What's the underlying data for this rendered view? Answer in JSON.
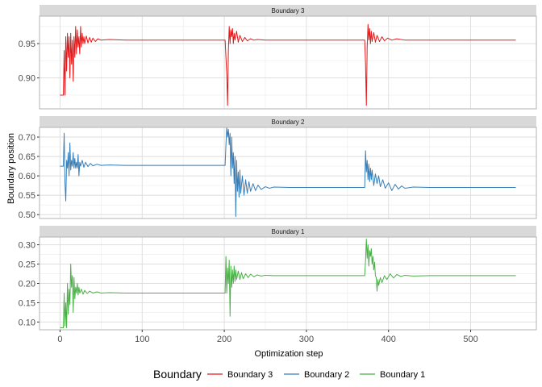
{
  "chart_data": {
    "type": "line",
    "xlabel": "Optimization step",
    "ylabel": "Boundary position",
    "xlim": [
      -25,
      580
    ],
    "x_ticks": [
      0,
      100,
      200,
      300,
      400,
      500
    ],
    "x_tick_labels": [
      "0",
      "100",
      "200",
      "300",
      "400",
      "500"
    ],
    "legend": {
      "title": "Boundary",
      "placement": "bottom",
      "entries": [
        {
          "label": "Boundary 3",
          "color": "#e41a1c"
        },
        {
          "label": "Boundary 2",
          "color": "#377eb8"
        },
        {
          "label": "Boundary 1",
          "color": "#4daf4a"
        }
      ]
    },
    "grid": true,
    "panels": [
      {
        "strip": "Boundary 3",
        "color": "#e41a1c",
        "ylim": [
          0.855,
          0.99
        ],
        "y_ticks": [
          0.9,
          0.95
        ],
        "y_tick_labels": [
          "0.90",
          "0.95"
        ],
        "points": [
          [
            0,
            0.875
          ],
          [
            4,
            0.875
          ],
          [
            5,
            0.94
          ],
          [
            6,
            0.875
          ],
          [
            7,
            0.96
          ],
          [
            8,
            0.91
          ],
          [
            9,
            0.965
          ],
          [
            10,
            0.93
          ],
          [
            11,
            0.96
          ],
          [
            12,
            0.9
          ],
          [
            13,
            0.965
          ],
          [
            14,
            0.92
          ],
          [
            15,
            0.955
          ],
          [
            16,
            0.895
          ],
          [
            17,
            0.96
          ],
          [
            18,
            0.93
          ],
          [
            19,
            0.975
          ],
          [
            20,
            0.935
          ],
          [
            21,
            0.97
          ],
          [
            22,
            0.945
          ],
          [
            23,
            0.96
          ],
          [
            24,
            0.935
          ],
          [
            25,
            0.975
          ],
          [
            26,
            0.945
          ],
          [
            27,
            0.965
          ],
          [
            28,
            0.95
          ],
          [
            29,
            0.96
          ],
          [
            30,
            0.95
          ],
          [
            32,
            0.961
          ],
          [
            34,
            0.951
          ],
          [
            36,
            0.959
          ],
          [
            38,
            0.952
          ],
          [
            40,
            0.958
          ],
          [
            43,
            0.953
          ],
          [
            46,
            0.957
          ],
          [
            50,
            0.955
          ],
          [
            60,
            0.956
          ],
          [
            80,
            0.955
          ],
          [
            100,
            0.955
          ],
          [
            150,
            0.955
          ],
          [
            200,
            0.955
          ],
          [
            201,
            0.955
          ],
          [
            202,
            0.93
          ],
          [
            203,
            0.905
          ],
          [
            204,
            0.86
          ],
          [
            205,
            0.94
          ],
          [
            206,
            0.975
          ],
          [
            207,
            0.95
          ],
          [
            208,
            0.97
          ],
          [
            209,
            0.96
          ],
          [
            210,
            0.972
          ],
          [
            211,
            0.95
          ],
          [
            212,
            0.965
          ],
          [
            213,
            0.955
          ],
          [
            215,
            0.968
          ],
          [
            217,
            0.952
          ],
          [
            219,
            0.962
          ],
          [
            222,
            0.953
          ],
          [
            225,
            0.959
          ],
          [
            228,
            0.954
          ],
          [
            232,
            0.957
          ],
          [
            236,
            0.955
          ],
          [
            240,
            0.956
          ],
          [
            250,
            0.955
          ],
          [
            300,
            0.955
          ],
          [
            370,
            0.955
          ],
          [
            371,
            0.955
          ],
          [
            372,
            0.92
          ],
          [
            373,
            0.86
          ],
          [
            374,
            0.945
          ],
          [
            375,
            0.978
          ],
          [
            376,
            0.955
          ],
          [
            377,
            0.972
          ],
          [
            378,
            0.95
          ],
          [
            379,
            0.968
          ],
          [
            380,
            0.953
          ],
          [
            382,
            0.966
          ],
          [
            384,
            0.952
          ],
          [
            386,
            0.962
          ],
          [
            389,
            0.953
          ],
          [
            392,
            0.96
          ],
          [
            395,
            0.954
          ],
          [
            399,
            0.958
          ],
          [
            404,
            0.955
          ],
          [
            410,
            0.957
          ],
          [
            420,
            0.955
          ],
          [
            450,
            0.955
          ],
          [
            500,
            0.955
          ],
          [
            555,
            0.955
          ]
        ]
      },
      {
        "strip": "Boundary 2",
        "color": "#377eb8",
        "ylim": [
          0.49,
          0.725
        ],
        "y_ticks": [
          0.5,
          0.55,
          0.6,
          0.65,
          0.7
        ],
        "y_tick_labels": [
          "0.50",
          "0.55",
          "0.60",
          "0.65",
          "0.70"
        ],
        "points": [
          [
            0,
            0.625
          ],
          [
            4,
            0.625
          ],
          [
            5,
            0.71
          ],
          [
            6,
            0.58
          ],
          [
            7,
            0.535
          ],
          [
            8,
            0.64
          ],
          [
            9,
            0.62
          ],
          [
            10,
            0.66
          ],
          [
            11,
            0.6
          ],
          [
            12,
            0.685
          ],
          [
            13,
            0.615
          ],
          [
            14,
            0.64
          ],
          [
            15,
            0.625
          ],
          [
            16,
            0.66
          ],
          [
            17,
            0.62
          ],
          [
            18,
            0.645
          ],
          [
            19,
            0.62
          ],
          [
            20,
            0.635
          ],
          [
            21,
            0.62
          ],
          [
            22,
            0.655
          ],
          [
            23,
            0.6
          ],
          [
            24,
            0.635
          ],
          [
            25,
            0.625
          ],
          [
            27,
            0.64
          ],
          [
            29,
            0.622
          ],
          [
            31,
            0.635
          ],
          [
            34,
            0.624
          ],
          [
            37,
            0.632
          ],
          [
            40,
            0.626
          ],
          [
            45,
            0.63
          ],
          [
            50,
            0.627
          ],
          [
            60,
            0.628
          ],
          [
            80,
            0.627
          ],
          [
            100,
            0.627
          ],
          [
            150,
            0.627
          ],
          [
            200,
            0.627
          ],
          [
            201,
            0.627
          ],
          [
            202,
            0.68
          ],
          [
            203,
            0.725
          ],
          [
            204,
            0.7
          ],
          [
            205,
            0.72
          ],
          [
            206,
            0.68
          ],
          [
            207,
            0.71
          ],
          [
            208,
            0.6
          ],
          [
            209,
            0.7
          ],
          [
            210,
            0.62
          ],
          [
            211,
            0.66
          ],
          [
            212,
            0.58
          ],
          [
            213,
            0.65
          ],
          [
            214,
            0.495
          ],
          [
            215,
            0.64
          ],
          [
            216,
            0.56
          ],
          [
            217,
            0.61
          ],
          [
            218,
            0.545
          ],
          [
            219,
            0.615
          ],
          [
            220,
            0.555
          ],
          [
            222,
            0.6
          ],
          [
            224,
            0.55
          ],
          [
            226,
            0.59
          ],
          [
            228,
            0.555
          ],
          [
            230,
            0.585
          ],
          [
            232,
            0.56
          ],
          [
            235,
            0.58
          ],
          [
            238,
            0.562
          ],
          [
            241,
            0.576
          ],
          [
            245,
            0.565
          ],
          [
            250,
            0.572
          ],
          [
            255,
            0.568
          ],
          [
            260,
            0.571
          ],
          [
            280,
            0.57
          ],
          [
            300,
            0.57
          ],
          [
            370,
            0.57
          ],
          [
            371,
            0.57
          ],
          [
            372,
            0.665
          ],
          [
            373,
            0.61
          ],
          [
            374,
            0.64
          ],
          [
            375,
            0.59
          ],
          [
            376,
            0.63
          ],
          [
            377,
            0.585
          ],
          [
            378,
            0.62
          ],
          [
            379,
            0.59
          ],
          [
            380,
            0.615
          ],
          [
            382,
            0.575
          ],
          [
            384,
            0.605
          ],
          [
            386,
            0.58
          ],
          [
            388,
            0.6
          ],
          [
            390,
            0.572
          ],
          [
            393,
            0.59
          ],
          [
            396,
            0.568
          ],
          [
            400,
            0.582
          ],
          [
            404,
            0.562
          ],
          [
            408,
            0.578
          ],
          [
            412,
            0.566
          ],
          [
            416,
            0.574
          ],
          [
            420,
            0.568
          ],
          [
            430,
            0.571
          ],
          [
            450,
            0.57
          ],
          [
            500,
            0.57
          ],
          [
            555,
            0.57
          ]
        ]
      },
      {
        "strip": "Boundary 1",
        "color": "#4daf4a",
        "ylim": [
          0.08,
          0.32
        ],
        "y_ticks": [
          0.1,
          0.15,
          0.2,
          0.25,
          0.3
        ],
        "y_tick_labels": [
          "0.10",
          "0.15",
          "0.20",
          "0.25",
          "0.30"
        ],
        "points": [
          [
            0,
            0.085
          ],
          [
            4,
            0.085
          ],
          [
            5,
            0.175
          ],
          [
            6,
            0.09
          ],
          [
            7,
            0.15
          ],
          [
            8,
            0.085
          ],
          [
            9,
            0.2
          ],
          [
            10,
            0.12
          ],
          [
            11,
            0.185
          ],
          [
            12,
            0.145
          ],
          [
            13,
            0.25
          ],
          [
            14,
            0.19
          ],
          [
            15,
            0.22
          ],
          [
            16,
            0.125
          ],
          [
            17,
            0.215
          ],
          [
            18,
            0.16
          ],
          [
            19,
            0.19
          ],
          [
            20,
            0.175
          ],
          [
            21,
            0.2
          ],
          [
            22,
            0.17
          ],
          [
            23,
            0.19
          ],
          [
            24,
            0.175
          ],
          [
            26,
            0.185
          ],
          [
            28,
            0.172
          ],
          [
            30,
            0.182
          ],
          [
            33,
            0.174
          ],
          [
            36,
            0.18
          ],
          [
            40,
            0.175
          ],
          [
            45,
            0.178
          ],
          [
            50,
            0.175
          ],
          [
            60,
            0.176
          ],
          [
            80,
            0.175
          ],
          [
            100,
            0.175
          ],
          [
            150,
            0.175
          ],
          [
            200,
            0.175
          ],
          [
            201,
            0.175
          ],
          [
            202,
            0.27
          ],
          [
            203,
            0.175
          ],
          [
            204,
            0.24
          ],
          [
            205,
            0.2
          ],
          [
            206,
            0.26
          ],
          [
            207,
            0.115
          ],
          [
            208,
            0.245
          ],
          [
            209,
            0.19
          ],
          [
            210,
            0.235
          ],
          [
            211,
            0.2
          ],
          [
            212,
            0.245
          ],
          [
            213,
            0.205
          ],
          [
            214,
            0.235
          ],
          [
            215,
            0.21
          ],
          [
            217,
            0.232
          ],
          [
            219,
            0.21
          ],
          [
            221,
            0.228
          ],
          [
            223,
            0.212
          ],
          [
            226,
            0.225
          ],
          [
            229,
            0.215
          ],
          [
            232,
            0.224
          ],
          [
            236,
            0.217
          ],
          [
            240,
            0.222
          ],
          [
            245,
            0.219
          ],
          [
            250,
            0.221
          ],
          [
            260,
            0.22
          ],
          [
            300,
            0.22
          ],
          [
            370,
            0.22
          ],
          [
            371,
            0.22
          ],
          [
            372,
            0.26
          ],
          [
            373,
            0.315
          ],
          [
            374,
            0.265
          ],
          [
            375,
            0.3
          ],
          [
            376,
            0.245
          ],
          [
            377,
            0.285
          ],
          [
            378,
            0.27
          ],
          [
            379,
            0.29
          ],
          [
            380,
            0.25
          ],
          [
            381,
            0.27
          ],
          [
            382,
            0.235
          ],
          [
            383,
            0.255
          ],
          [
            384,
            0.22
          ],
          [
            385,
            0.215
          ],
          [
            386,
            0.18
          ],
          [
            387,
            0.21
          ],
          [
            388,
            0.195
          ],
          [
            390,
            0.215
          ],
          [
            392,
            0.202
          ],
          [
            395,
            0.22
          ],
          [
            398,
            0.21
          ],
          [
            402,
            0.225
          ],
          [
            406,
            0.214
          ],
          [
            410,
            0.223
          ],
          [
            415,
            0.218
          ],
          [
            420,
            0.221
          ],
          [
            430,
            0.219
          ],
          [
            450,
            0.22
          ],
          [
            500,
            0.22
          ],
          [
            555,
            0.22
          ]
        ]
      }
    ]
  }
}
